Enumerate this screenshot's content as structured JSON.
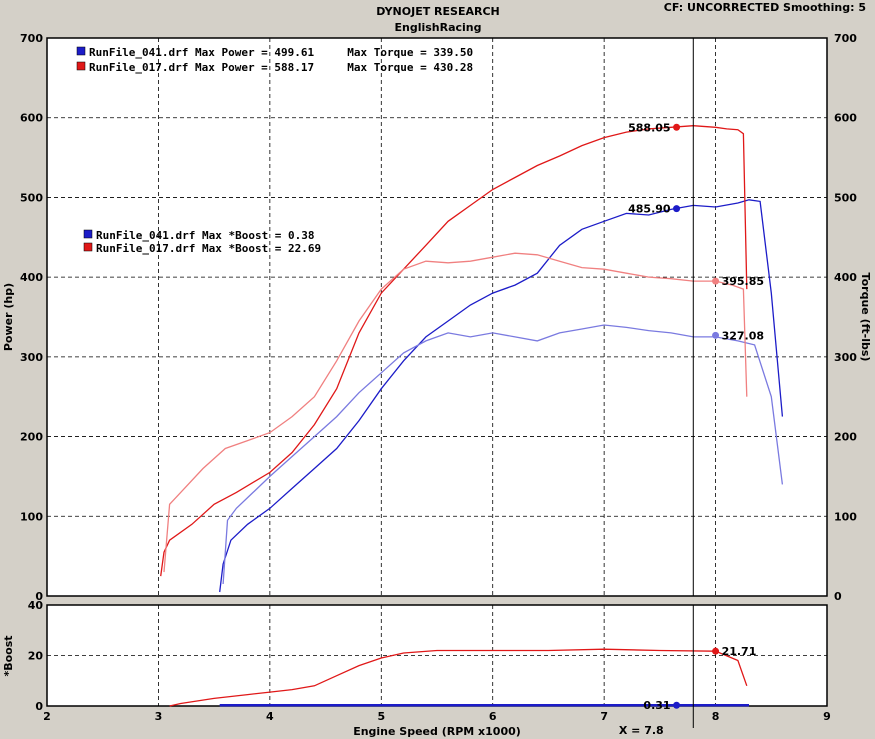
{
  "header": {
    "title": "DYNOJET RESEARCH",
    "subtitle": "EnglishRacing",
    "correction": "CF: UNCORRECTED  Smoothing: 5"
  },
  "colors": {
    "run_041": "#1c1cc8",
    "run_017": "#e01818",
    "grid": "#000000",
    "background": "#d4d0c8"
  },
  "chart_data": [
    {
      "type": "line",
      "title": "DYNOJET RESEARCH",
      "xlabel": "",
      "ylabel": "Power (hp)",
      "y2label": "Torque (ft-lbs)",
      "xlim": [
        2,
        9
      ],
      "ylim": [
        0,
        700
      ],
      "yticks": [
        "0",
        "100",
        "200",
        "300",
        "400",
        "500",
        "600",
        "700"
      ],
      "grid": true,
      "legend_power": [
        "RunFile_041.drf Max Power = 499.61     Max Torque = 339.50",
        "RunFile_017.drf Max Power = 588.17     Max Torque = 430.28"
      ],
      "legend_boost": [
        "RunFile_041.drf Max *Boost = 0.38",
        "RunFile_017.drf Max *Boost = 22.69"
      ],
      "series": [
        {
          "name": "RunFile_041.drf",
          "measure": "power",
          "color": "#1c1cc8",
          "x": [
            3.55,
            3.58,
            3.65,
            3.8,
            4.0,
            4.2,
            4.4,
            4.6,
            4.8,
            5.0,
            5.2,
            5.4,
            5.6,
            5.8,
            6.0,
            6.2,
            6.4,
            6.6,
            6.8,
            7.0,
            7.2,
            7.4,
            7.6,
            7.8,
            8.0,
            8.2,
            8.3,
            8.4,
            8.5,
            8.6
          ],
          "y": [
            5,
            40,
            70,
            90,
            110,
            135,
            160,
            185,
            220,
            260,
            295,
            325,
            345,
            365,
            380,
            390,
            405,
            440,
            460,
            470,
            480,
            478,
            485,
            490,
            488,
            493,
            497,
            495,
            380,
            225
          ]
        },
        {
          "name": "RunFile_017.drf",
          "measure": "power",
          "color": "#e01818",
          "x": [
            3.02,
            3.05,
            3.1,
            3.3,
            3.5,
            3.7,
            4.0,
            4.2,
            4.4,
            4.6,
            4.8,
            5.0,
            5.2,
            5.4,
            5.6,
            5.8,
            6.0,
            6.2,
            6.4,
            6.6,
            6.8,
            7.0,
            7.2,
            7.4,
            7.6,
            7.8,
            8.0,
            8.1,
            8.2,
            8.25,
            8.28
          ],
          "y": [
            25,
            55,
            70,
            90,
            115,
            130,
            155,
            180,
            215,
            260,
            330,
            380,
            410,
            440,
            470,
            490,
            510,
            525,
            540,
            552,
            565,
            575,
            582,
            586,
            588,
            590,
            588,
            586,
            585,
            580,
            385
          ]
        },
        {
          "name": "RunFile_041.drf",
          "measure": "torque",
          "color": "#7a7ae0",
          "x": [
            3.58,
            3.62,
            3.7,
            3.85,
            4.0,
            4.2,
            4.4,
            4.6,
            4.8,
            5.0,
            5.2,
            5.4,
            5.6,
            5.8,
            6.0,
            6.2,
            6.4,
            6.6,
            6.8,
            7.0,
            7.2,
            7.4,
            7.6,
            7.8,
            8.0,
            8.2,
            8.35,
            8.5,
            8.6
          ],
          "y": [
            15,
            95,
            110,
            130,
            150,
            175,
            200,
            225,
            255,
            280,
            305,
            320,
            330,
            325,
            330,
            325,
            320,
            330,
            335,
            340,
            337,
            333,
            330,
            325,
            325,
            320,
            315,
            250,
            140
          ]
        },
        {
          "name": "RunFile_017.drf",
          "measure": "torque",
          "color": "#f08080",
          "x": [
            3.05,
            3.1,
            3.2,
            3.4,
            3.6,
            3.8,
            4.0,
            4.2,
            4.4,
            4.6,
            4.8,
            5.0,
            5.2,
            5.4,
            5.6,
            5.8,
            6.0,
            6.2,
            6.4,
            6.6,
            6.8,
            7.0,
            7.2,
            7.4,
            7.6,
            7.8,
            8.0,
            8.15,
            8.25,
            8.28
          ],
          "y": [
            30,
            115,
            130,
            160,
            185,
            195,
            205,
            225,
            250,
            295,
            345,
            385,
            410,
            420,
            418,
            420,
            425,
            430,
            428,
            420,
            412,
            410,
            405,
            400,
            398,
            395,
            395,
            390,
            385,
            250
          ]
        }
      ],
      "markers": [
        {
          "series": "RunFile_017.drf",
          "x": 7.65,
          "y": 588,
          "label": "588.05",
          "color": "#e01818"
        },
        {
          "series": "RunFile_041.drf",
          "x": 7.65,
          "y": 486,
          "label": "485.90",
          "color": "#1c1cc8"
        },
        {
          "series": "RunFile_017.drf",
          "x": 8.0,
          "y": 395,
          "label": "395.85",
          "color": "#f08080"
        },
        {
          "series": "RunFile_041.drf",
          "x": 8.0,
          "y": 327,
          "label": "327.08",
          "color": "#7a7ae0"
        }
      ]
    },
    {
      "type": "line",
      "xlabel": "Engine Speed (RPM x1000)",
      "ylabel": "*Boost",
      "xlim": [
        2,
        9
      ],
      "ylim": [
        0,
        40
      ],
      "xticks": [
        "2",
        "3",
        "4",
        "5",
        "6",
        "7",
        "8",
        "9"
      ],
      "yticks": [
        "0",
        "20",
        "40"
      ],
      "grid": true,
      "series": [
        {
          "name": "RunFile_041.drf",
          "color": "#1c1cc8",
          "x": [
            3.55,
            4.0,
            5.0,
            6.0,
            7.0,
            7.65,
            8.3
          ],
          "y": [
            0.3,
            0.3,
            0.3,
            0.3,
            0.3,
            0.3,
            0.3
          ]
        },
        {
          "name": "RunFile_017.drf",
          "color": "#e01818",
          "x": [
            3.1,
            3.2,
            3.5,
            3.8,
            4.0,
            4.2,
            4.4,
            4.6,
            4.8,
            5.0,
            5.2,
            5.5,
            6.0,
            6.5,
            7.0,
            7.5,
            8.0,
            8.2,
            8.28
          ],
          "y": [
            0,
            1,
            3,
            4.5,
            5.5,
            6.5,
            8,
            12,
            16,
            19,
            21,
            22,
            22,
            22,
            22.5,
            22,
            21.7,
            18,
            8
          ]
        }
      ],
      "markers": [
        {
          "series": "RunFile_017.drf",
          "x": 8.0,
          "y": 21.71,
          "label": "21.71",
          "color": "#e01818"
        },
        {
          "series": "RunFile_041.drf",
          "x": 7.65,
          "y": 0.31,
          "label": "0.31",
          "color": "#1c1cc8"
        }
      ],
      "cursor_label": "X = 7.8",
      "cursor_x": 7.8
    }
  ]
}
